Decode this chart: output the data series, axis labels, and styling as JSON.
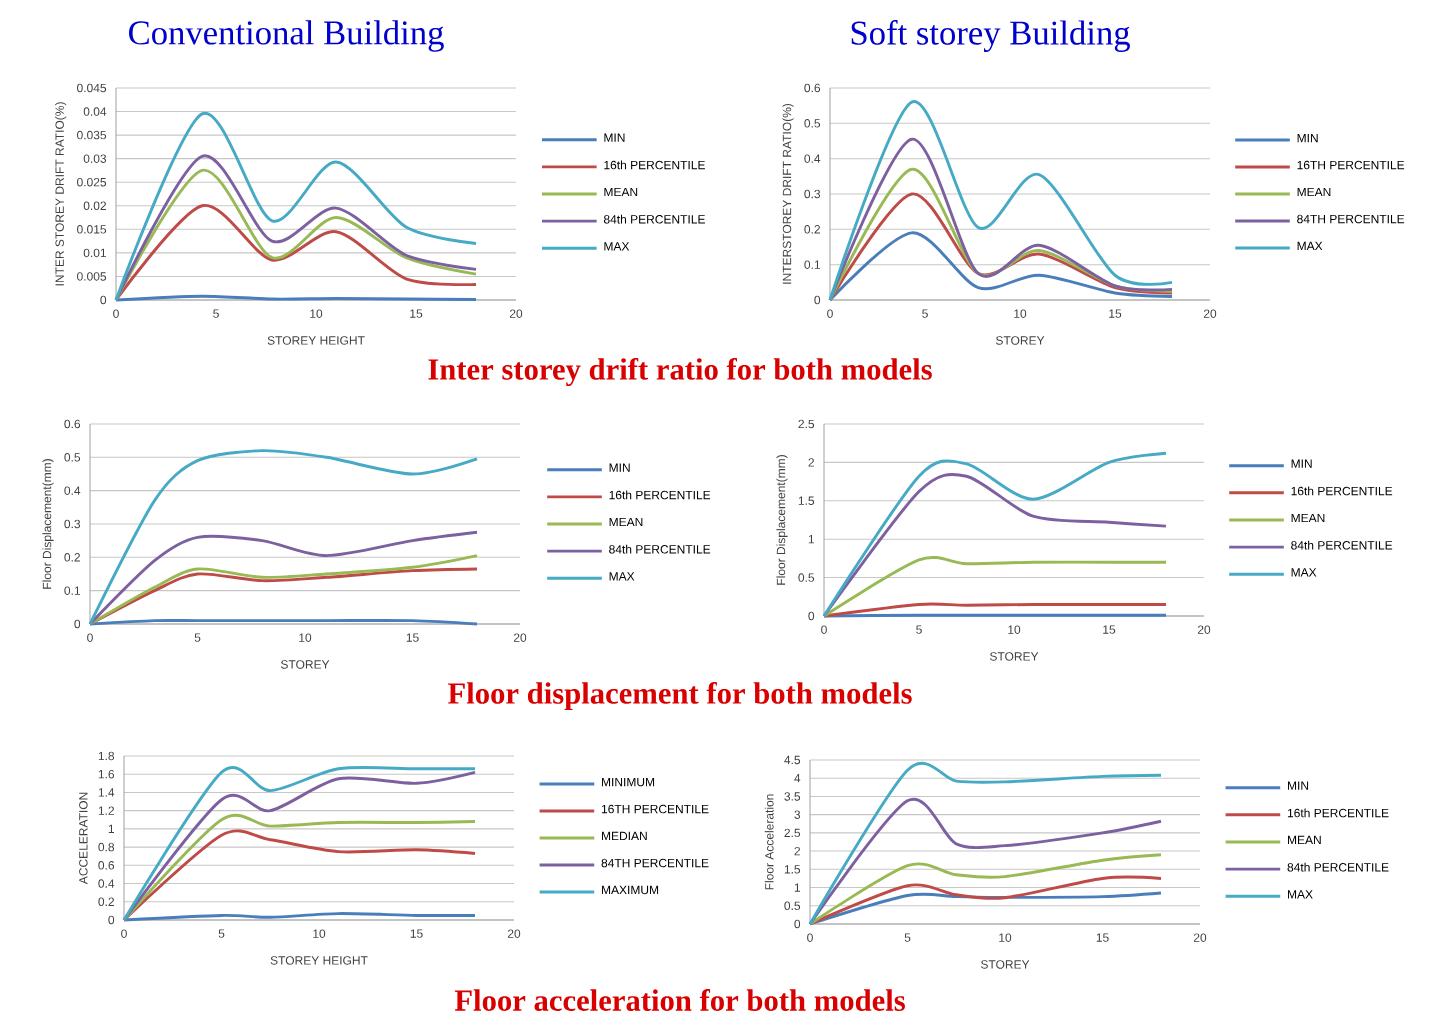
{
  "chart_data": [
    {
      "type": "line",
      "title": "Conventional Building",
      "xlabel": "STOREY HEIGHT",
      "ylabel": "INTER STOREY DRIFT RATIO(%)",
      "annotations": [
        "Inter storey drift ratio  for both models"
      ],
      "x": [
        0,
        4.3,
        7.8,
        11,
        14.5,
        18
      ],
      "xlim": [
        0,
        20
      ],
      "xticks": [
        0,
        5,
        10,
        15,
        20
      ],
      "ylim": [
        0,
        0.045
      ],
      "yticks": [
        0,
        0.005,
        0.01,
        0.015,
        0.02,
        0.025,
        0.03,
        0.035,
        0.04,
        0.045
      ],
      "grid": "y",
      "legend": "right",
      "series": [
        {
          "name": "MIN",
          "color": "#4a7ebb",
          "values": [
            0,
            0.0008,
            0.0002,
            0.0003,
            0.0002,
            0.0001
          ]
        },
        {
          "name": "16th PERCENTILE",
          "color": "#be4b48",
          "values": [
            0,
            0.02,
            0.0085,
            0.0145,
            0.0045,
            0.0033
          ]
        },
        {
          "name": "MEAN",
          "color": "#98b954",
          "values": [
            0,
            0.0275,
            0.009,
            0.0175,
            0.009,
            0.0055
          ]
        },
        {
          "name": "84th PERCENTILE",
          "color": "#7d60a0",
          "values": [
            0,
            0.0305,
            0.0125,
            0.0195,
            0.0095,
            0.0065
          ]
        },
        {
          "name": "MAX",
          "color": "#46aac5",
          "values": [
            0,
            0.0395,
            0.0168,
            0.0293,
            0.0155,
            0.012
          ]
        }
      ]
    },
    {
      "type": "line",
      "title": "Soft storey Building",
      "xlabel": "STOREY",
      "ylabel": "INTERSTOREY DRIFT RATIO(%)",
      "x": [
        0,
        4.3,
        7.8,
        11,
        15,
        18
      ],
      "xlim": [
        0,
        20
      ],
      "xticks": [
        0,
        5,
        10,
        15,
        20
      ],
      "ylim": [
        0,
        0.6
      ],
      "yticks": [
        0,
        0.1,
        0.2,
        0.3,
        0.4,
        0.5,
        0.6
      ],
      "grid": "y",
      "legend": "right",
      "series": [
        {
          "name": "MIN",
          "color": "#4a7ebb",
          "values": [
            0,
            0.19,
            0.035,
            0.07,
            0.02,
            0.01
          ]
        },
        {
          "name": "16TH PERCENTILE",
          "color": "#be4b48",
          "values": [
            0,
            0.3,
            0.075,
            0.13,
            0.035,
            0.02
          ]
        },
        {
          "name": "MEAN",
          "color": "#98b954",
          "values": [
            0,
            0.37,
            0.075,
            0.14,
            0.04,
            0.025
          ]
        },
        {
          "name": "84TH PERCENTILE",
          "color": "#7d60a0",
          "values": [
            0,
            0.455,
            0.075,
            0.155,
            0.04,
            0.03
          ]
        },
        {
          "name": "MAX",
          "color": "#46aac5",
          "values": [
            0,
            0.56,
            0.205,
            0.355,
            0.07,
            0.05
          ]
        }
      ]
    },
    {
      "type": "line",
      "xlabel": "STOREY",
      "ylabel": "Floor Displacement(mm)",
      "annotations": [
        "Floor displacement for both models"
      ],
      "x": [
        0,
        3,
        5,
        8,
        11,
        15,
        18
      ],
      "xlim": [
        0,
        20
      ],
      "xticks": [
        0,
        5,
        10,
        15,
        20
      ],
      "ylim": [
        0,
        0.6
      ],
      "yticks": [
        0,
        0.1,
        0.2,
        0.3,
        0.4,
        0.5,
        0.6
      ],
      "grid": "y",
      "legend": "right",
      "series": [
        {
          "name": "MIN",
          "color": "#4a7ebb",
          "values": [
            0,
            0.01,
            0.01,
            0.01,
            0.01,
            0.01,
            0
          ]
        },
        {
          "name": "16th PERCENTILE",
          "color": "#be4b48",
          "values": [
            0,
            0.1,
            0.15,
            0.13,
            0.14,
            0.16,
            0.165
          ]
        },
        {
          "name": "MEAN",
          "color": "#98b954",
          "values": [
            0,
            0.11,
            0.165,
            0.14,
            0.15,
            0.17,
            0.205
          ]
        },
        {
          "name": "84th PERCENTILE",
          "color": "#7d60a0",
          "values": [
            0,
            0.19,
            0.26,
            0.25,
            0.205,
            0.25,
            0.275
          ]
        },
        {
          "name": "MAX",
          "color": "#46aac5",
          "values": [
            0,
            0.37,
            0.49,
            0.52,
            0.5,
            0.45,
            0.495
          ]
        }
      ]
    },
    {
      "type": "line",
      "xlabel": "STOREY",
      "ylabel": "Floor Displacement(mm)",
      "x": [
        0,
        5,
        7.5,
        11,
        15,
        18
      ],
      "xlim": [
        0,
        20
      ],
      "xticks": [
        0,
        5,
        10,
        15,
        20
      ],
      "ylim": [
        0,
        2.5
      ],
      "yticks": [
        0,
        0.5,
        1,
        1.5,
        2,
        2.5
      ],
      "grid": "y",
      "legend": "right",
      "series": [
        {
          "name": "MIN",
          "color": "#4a7ebb",
          "values": [
            0,
            0.01,
            0.01,
            0.01,
            0.01,
            0.01
          ]
        },
        {
          "name": "16th PERCENTILE",
          "color": "#be4b48",
          "values": [
            0,
            0.15,
            0.14,
            0.15,
            0.15,
            0.15
          ]
        },
        {
          "name": "MEAN",
          "color": "#98b954",
          "values": [
            0,
            0.73,
            0.68,
            0.7,
            0.7,
            0.7
          ]
        },
        {
          "name": "84th PERCENTILE",
          "color": "#7d60a0",
          "values": [
            0,
            1.62,
            1.82,
            1.3,
            1.22,
            1.17
          ]
        },
        {
          "name": "MAX",
          "color": "#46aac5",
          "values": [
            0,
            1.82,
            1.98,
            1.52,
            2.0,
            2.12
          ]
        }
      ]
    },
    {
      "type": "line",
      "xlabel": "STOREY HEIGHT",
      "ylabel": "ACCELERATION",
      "annotations": [
        "Floor acceleration for both models"
      ],
      "x": [
        0,
        5,
        7.5,
        11,
        15,
        18
      ],
      "xlim": [
        0,
        20
      ],
      "xticks": [
        0,
        5,
        10,
        15,
        20
      ],
      "ylim": [
        0,
        1.8
      ],
      "yticks": [
        0,
        0.2,
        0.4,
        0.6,
        0.8,
        1,
        1.2,
        1.4,
        1.6,
        1.8
      ],
      "grid": "y",
      "legend": "right",
      "series": [
        {
          "name": "MINIMUM",
          "color": "#4a7ebb",
          "values": [
            0,
            0.05,
            0.03,
            0.07,
            0.05,
            0.05
          ]
        },
        {
          "name": "16TH PERCENTILE",
          "color": "#be4b48",
          "values": [
            0,
            0.93,
            0.88,
            0.75,
            0.77,
            0.73
          ]
        },
        {
          "name": "MEDIAN",
          "color": "#98b954",
          "values": [
            0,
            1.1,
            1.03,
            1.07,
            1.07,
            1.08
          ]
        },
        {
          "name": "84TH PERCENTILE",
          "color": "#7d60a0",
          "values": [
            0,
            1.32,
            1.2,
            1.55,
            1.5,
            1.62
          ]
        },
        {
          "name": "MAXIMUM",
          "color": "#46aac5",
          "values": [
            0,
            1.62,
            1.42,
            1.66,
            1.66,
            1.66
          ]
        }
      ]
    },
    {
      "type": "line",
      "xlabel": "STOREY",
      "ylabel": "Floor Acceleration",
      "x": [
        0,
        5,
        7.5,
        10,
        15,
        18
      ],
      "xlim": [
        0,
        20
      ],
      "xticks": [
        0,
        5,
        10,
        15,
        20
      ],
      "ylim": [
        0,
        4.5
      ],
      "yticks": [
        0,
        0.5,
        1,
        1.5,
        2,
        2.5,
        3,
        3.5,
        4,
        4.5
      ],
      "grid": "y",
      "legend": "right",
      "series": [
        {
          "name": "MIN",
          "color": "#4a7ebb",
          "values": [
            0,
            0.78,
            0.75,
            0.73,
            0.75,
            0.85
          ]
        },
        {
          "name": "16th PERCENTILE",
          "color": "#be4b48",
          "values": [
            0,
            1.05,
            0.8,
            0.72,
            1.25,
            1.25
          ]
        },
        {
          "name": "MEAN",
          "color": "#98b954",
          "values": [
            0,
            1.6,
            1.35,
            1.3,
            1.75,
            1.9
          ]
        },
        {
          "name": "84th PERCENTILE",
          "color": "#7d60a0",
          "values": [
            0,
            3.38,
            2.2,
            2.15,
            2.5,
            2.82
          ]
        },
        {
          "name": "MAX",
          "color": "#46aac5",
          "values": [
            0,
            4.22,
            3.92,
            3.9,
            4.05,
            4.08
          ]
        }
      ]
    }
  ]
}
